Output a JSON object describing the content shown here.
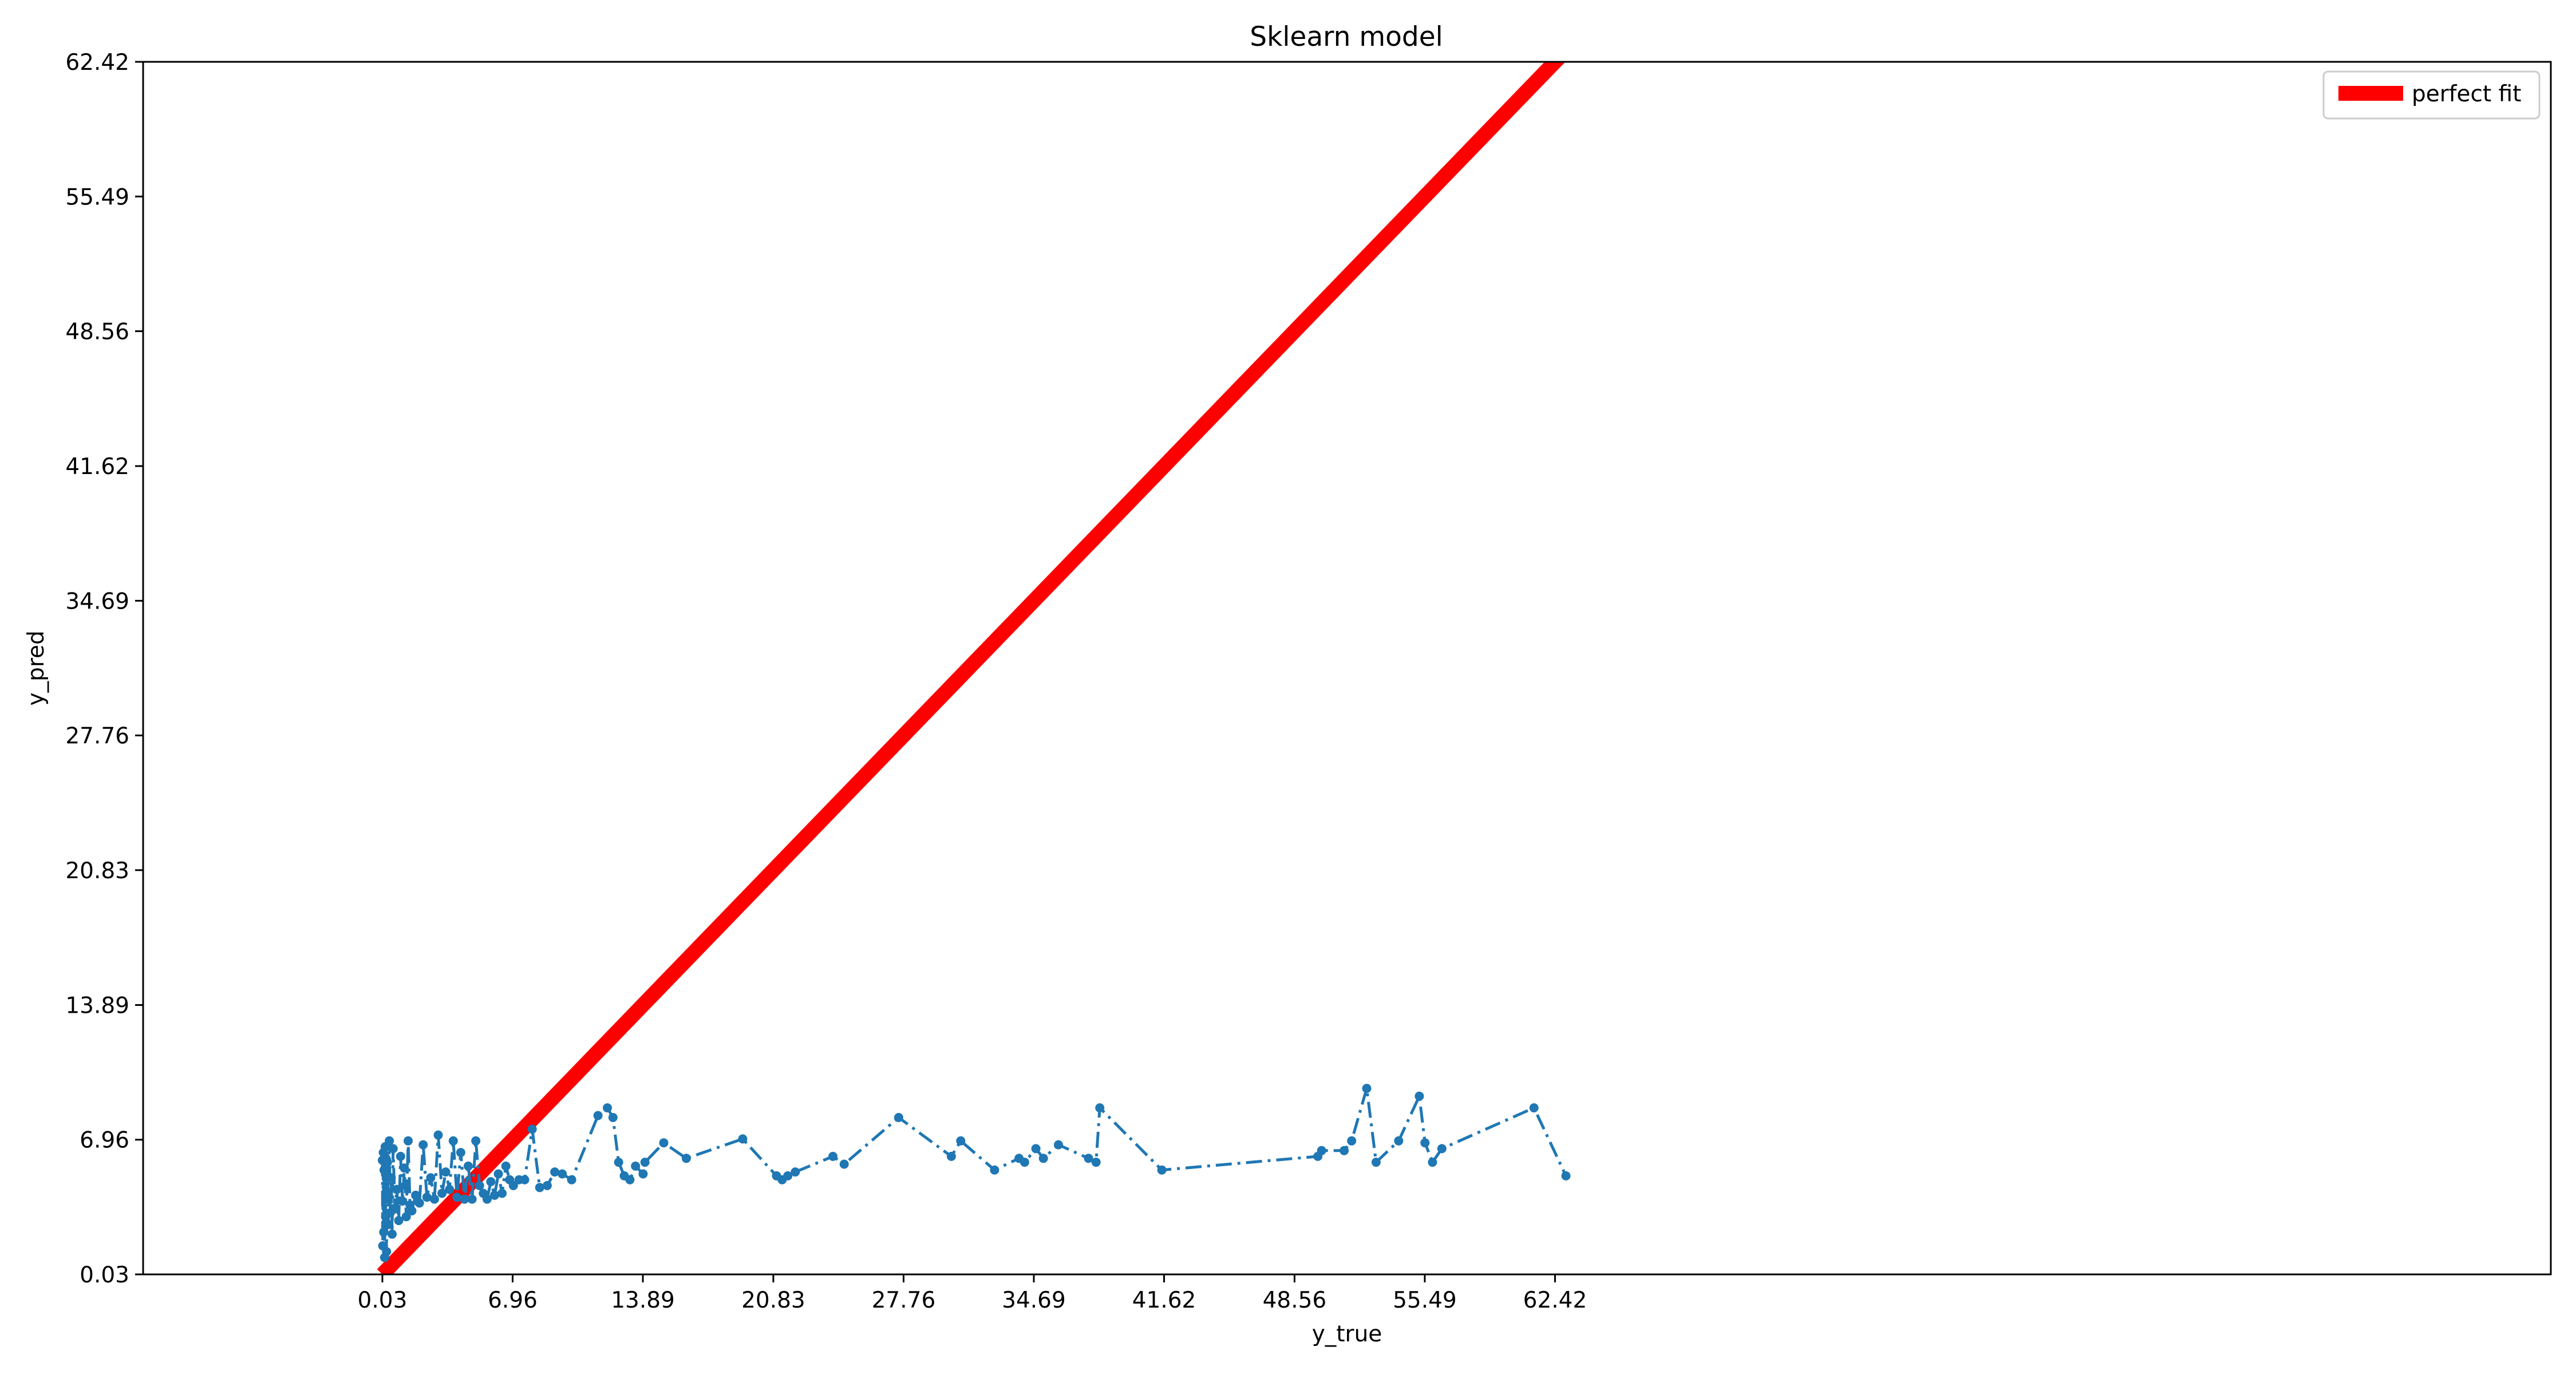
{
  "chart_data": {
    "type": "line",
    "title": "Sklearn model",
    "xlabel": "y_true",
    "ylabel": "y_pred",
    "xlim": [
      -12.7,
      115.4
    ],
    "ylim": [
      0.03,
      62.42
    ],
    "xticks": [
      "0.03",
      "6.96",
      "13.89",
      "20.83",
      "27.76",
      "34.69",
      "41.62",
      "48.56",
      "55.49",
      "62.42"
    ],
    "yticks": [
      "0.03",
      "6.96",
      "13.89",
      "20.83",
      "27.76",
      "34.69",
      "41.62",
      "48.56",
      "55.49",
      "62.42"
    ],
    "grid": false,
    "legend_position": "top-right",
    "series": [
      {
        "name": "perfect fit",
        "style": "solid-thick",
        "color": "#ff0000",
        "x": [
          0.03,
          64.0
        ],
        "y": [
          0.03,
          64.0
        ]
      },
      {
        "style": "dash-dot-markers",
        "color": "#1f77b4",
        "x": [
          0.03,
          0.05,
          0.08,
          0.1,
          0.12,
          0.15,
          0.18,
          0.2,
          0.22,
          0.25,
          0.3,
          0.35,
          0.4,
          0.45,
          0.5,
          0.55,
          0.6,
          0.7,
          0.8,
          0.9,
          1.0,
          1.1,
          1.2,
          1.3,
          1.4,
          1.5,
          1.6,
          1.8,
          2.0,
          2.2,
          2.4,
          2.6,
          2.8,
          3.0,
          3.2,
          3.4,
          3.6,
          3.8,
          4.0,
          4.2,
          4.4,
          4.6,
          4.8,
          5.0,
          5.2,
          5.4,
          5.6,
          5.8,
          6.0,
          6.2,
          6.4,
          6.6,
          6.8,
          7.0,
          7.3,
          7.6,
          8.0,
          8.4,
          8.8,
          9.2,
          9.6,
          10.1,
          11.5,
          12.0,
          12.3,
          12.6,
          12.9,
          13.2,
          13.5,
          13.9,
          14.0,
          15.0,
          16.2,
          19.2,
          21.0,
          21.3,
          21.6,
          22.0,
          24.0,
          24.6,
          27.5,
          30.3,
          30.8,
          32.6,
          33.9,
          34.2,
          34.8,
          35.2,
          36.0,
          37.6,
          38.0,
          38.2,
          41.5,
          49.8,
          50.0,
          51.2,
          51.6,
          52.4,
          52.9,
          54.1,
          55.2,
          55.5,
          55.9,
          56.4,
          61.3,
          63.0
        ],
        "y": [
          5.9,
          1.5,
          6.3,
          2.2,
          5.4,
          0.9,
          6.6,
          3.0,
          6.0,
          1.2,
          5.8,
          2.6,
          6.9,
          3.2,
          5.0,
          2.1,
          6.5,
          3.4,
          4.4,
          2.8,
          6.1,
          3.8,
          5.5,
          3.0,
          6.9,
          3.6,
          3.3,
          4.1,
          3.7,
          6.7,
          4.0,
          5.0,
          3.9,
          7.2,
          4.2,
          5.3,
          4.4,
          6.9,
          4.0,
          6.3,
          3.9,
          5.6,
          3.9,
          6.9,
          4.6,
          4.2,
          3.9,
          4.8,
          4.1,
          5.2,
          4.2,
          5.6,
          4.9,
          4.6,
          4.9,
          4.9,
          7.5,
          4.5,
          4.6,
          5.3,
          5.2,
          4.9,
          8.2,
          8.6,
          8.1,
          5.8,
          5.1,
          4.9,
          5.6,
          5.2,
          5.8,
          6.8,
          6.0,
          7.0,
          5.1,
          4.9,
          5.1,
          5.3,
          6.1,
          5.7,
          8.1,
          6.1,
          6.9,
          5.4,
          6.0,
          5.8,
          6.5,
          6.0,
          6.7,
          6.0,
          5.8,
          8.6,
          5.4,
          6.1,
          6.4,
          6.4,
          6.9,
          9.6,
          5.8,
          6.9,
          9.2,
          6.8,
          5.8,
          6.5,
          8.6,
          5.1
        ]
      }
    ]
  }
}
